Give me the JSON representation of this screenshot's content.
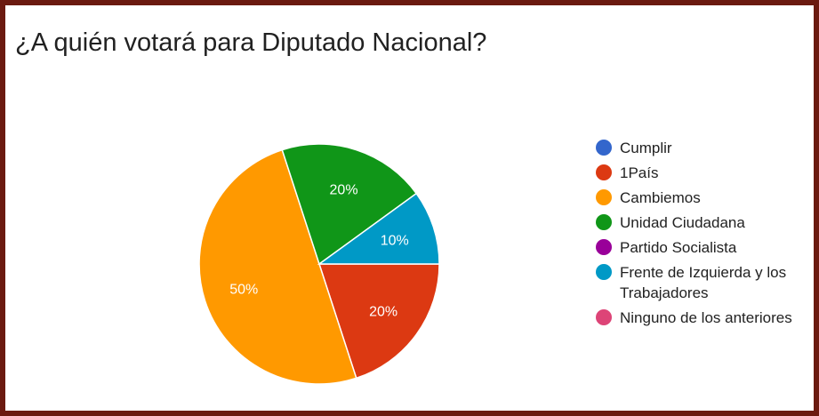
{
  "title": "¿A quién votará para Diputado Nacional?",
  "chart_data": {
    "type": "pie",
    "title": "¿A quién votará para Diputado Nacional?",
    "legend_position": "right",
    "start_angle_deg": 0,
    "slices": [
      {
        "label": "Cumplir",
        "value": 0,
        "color": "#3366cc"
      },
      {
        "label": "1País",
        "value": 20,
        "color": "#dc3912",
        "data_label": "20%"
      },
      {
        "label": "Cambiemos",
        "value": 50,
        "color": "#ff9900",
        "data_label": "50%"
      },
      {
        "label": "Unidad Ciudadana",
        "value": 20,
        "color": "#109618",
        "data_label": "20%"
      },
      {
        "label": "Partido Socialista",
        "value": 0,
        "color": "#990099"
      },
      {
        "label": "Frente de Izquierda y los Trabajadores",
        "value": 10,
        "color": "#0099c6",
        "data_label": "10%"
      },
      {
        "label": "Ninguno de los anteriores",
        "value": 0,
        "color": "#dd4477"
      }
    ]
  }
}
